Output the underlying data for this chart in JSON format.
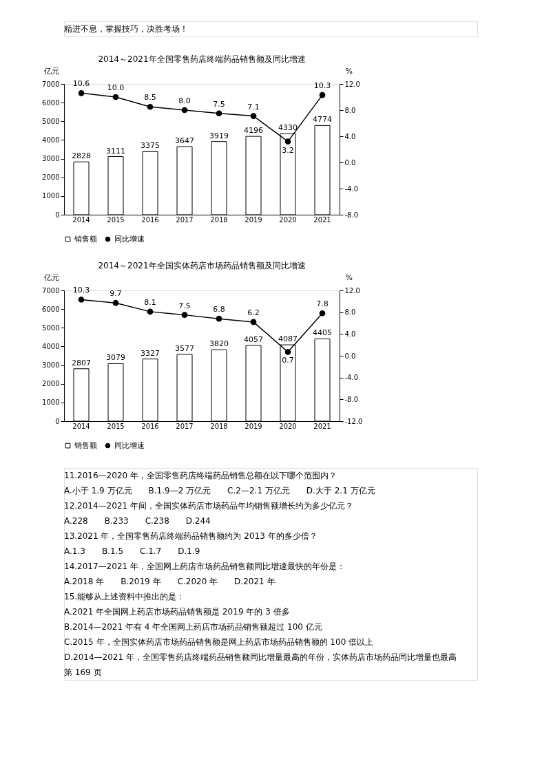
{
  "chart_data": [
    {
      "type": "bar",
      "title": "2014～2021年全国零售药店终端药品销售额及同比增速",
      "categories": [
        "2014",
        "2015",
        "2016",
        "2017",
        "2018",
        "2019",
        "2020",
        "2021"
      ],
      "series": [
        {
          "name": "销售额",
          "color": "#ffffff",
          "values": [
            2828,
            3111,
            3375,
            3647,
            3919,
            4196,
            4330,
            4774
          ]
        },
        {
          "name": "同比增速",
          "type": "line",
          "axis": "y2",
          "color": "#000000",
          "values": [
            10.6,
            10.0,
            8.5,
            8.0,
            7.5,
            7.1,
            3.2,
            10.3
          ],
          "value_labels": [
            "10.6",
            "10.0",
            "8.5",
            "8.0",
            "7.5",
            "7.1",
            "3.2",
            "10.3"
          ]
        }
      ],
      "ylabel": "亿元",
      "y2label": "%",
      "ylim": [
        0,
        7000
      ],
      "yticks": [
        0,
        1000,
        2000,
        3000,
        4000,
        5000,
        6000,
        7000
      ],
      "y2lim": [
        -8,
        12
      ],
      "y2ticks": [
        {
          "value": -8,
          "label": "-8.0"
        },
        {
          "value": -4,
          "label": "-4.0"
        },
        {
          "value": 0,
          "label": "0.0"
        },
        {
          "value": 4,
          "label": "4.0"
        },
        {
          "value": 8,
          "label": "8.0"
        },
        {
          "value": 12,
          "label": "12.0"
        }
      ],
      "data_labels": true,
      "legend": "bottom",
      "marker": "circle",
      "line_style": "solid",
      "annotations": [
        "精进不息，掌握技巧，决胜考场！"
      ]
    },
    {
      "type": "bar",
      "title": "2014～2021年全国实体药店市场药品销售额及同比增速",
      "categories": [
        "2014",
        "2015",
        "2016",
        "2017",
        "2018",
        "2019",
        "2020",
        "2021"
      ],
      "series": [
        {
          "name": "销售额",
          "color": "#ffffff",
          "values": [
            2807,
            3079,
            3327,
            3577,
            3820,
            4057,
            4087,
            4405
          ]
        },
        {
          "name": "同比增速",
          "type": "line",
          "axis": "y2",
          "color": "#000000",
          "values": [
            10.3,
            9.7,
            8.1,
            7.5,
            6.8,
            6.2,
            0.7,
            7.8
          ],
          "value_labels": [
            "10.3",
            "9.7",
            "8.1",
            "7.5",
            "6.8",
            "6.2",
            "0.7",
            "7.8"
          ]
        }
      ],
      "ylabel": "亿元",
      "y2label": "%",
      "ylim": [
        0,
        7000
      ],
      "yticks": [
        0,
        1000,
        2000,
        3000,
        4000,
        5000,
        6000,
        7000
      ],
      "y2lim": [
        -12,
        12
      ],
      "y2ticks": [
        {
          "value": -12,
          "label": "-12.0"
        },
        {
          "value": -8,
          "label": "-8.0"
        },
        {
          "value": -4,
          "label": "-4.0"
        },
        {
          "value": 0,
          "label": "0.0"
        },
        {
          "value": 4,
          "label": "4.0"
        },
        {
          "value": 8,
          "label": "8.0"
        },
        {
          "value": 12,
          "label": "12.0"
        }
      ],
      "data_labels": true,
      "legend": "bottom",
      "marker": "circle",
      "line_style": "solid",
      "annotations": [
        "11.2016—2020 年，全国零售药店终端药品销售总额在以下哪个范围内？",
        "A.小于 1.9 万亿元　　B.1.9—2 万亿元　　C.2—2.1 万亿元　　D.大于 2.1 万亿元",
        "12.2014—2021 年间，全国实体药店市场药品年均销售额增长约为多少亿元？",
        "A.228　　B.233　　C.238　　D.244",
        "13.2021 年，全国零售药店终端药品销售额约为 2013 年的多少倍？",
        "A.1.3　　B.1.5　　C.1.7　　D.1.9",
        "14.2017—2021 年，全国网上药店市场药品销售额同比增速最快的年份是：",
        "A.2018 年　　B.2019 年　　C.2020 年　　D.2021 年",
        "15.能够从上述资料中推出的是：",
        "A.2021 年全国网上药店市场药品销售额是 2019 年的 3 倍多",
        "B.2014—2021 年有 4 年全国网上药店市场药品销售额超过 100 亿元",
        "C.2015 年，全国实体药店市场药品销售额是网上药店市场药品销售额的 100 倍以上",
        "D.2014—2021 年，全国零售药店终端药品销售额同比增量最高的年份，实体药店市场药品同比增量也最高",
        "第 169 页"
      ]
    }
  ]
}
